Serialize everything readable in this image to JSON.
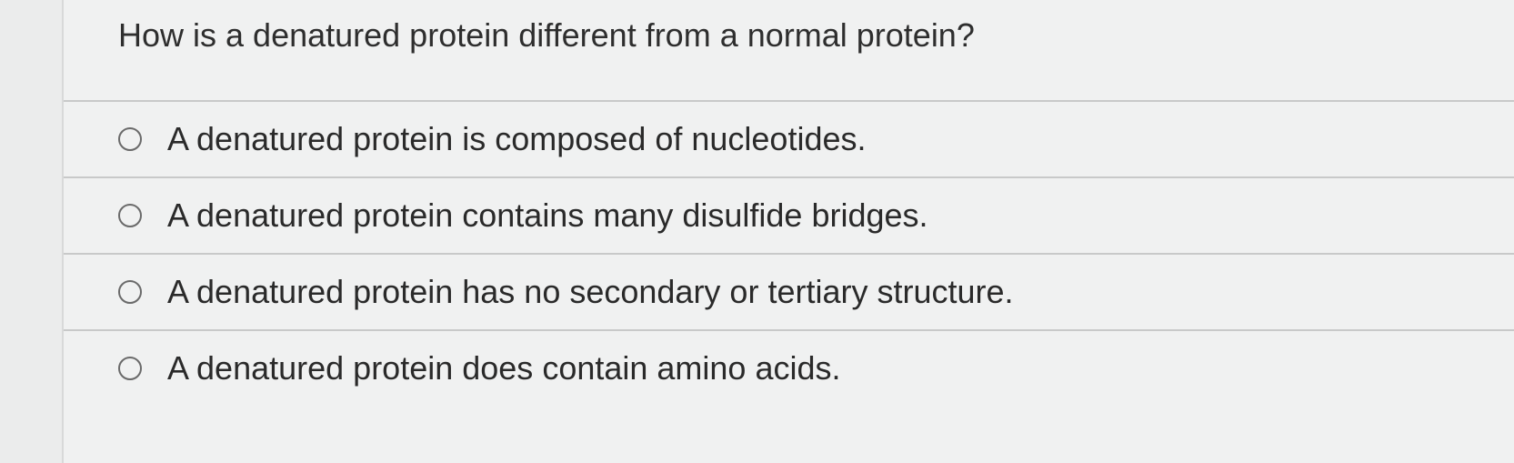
{
  "question": {
    "text": "How is a denatured protein different from a normal protein?",
    "options": [
      {
        "label": "A denatured protein is composed of nucleotides."
      },
      {
        "label": "A denatured protein contains many disulfide bridges."
      },
      {
        "label": "A denatured protein has no secondary or tertiary structure."
      },
      {
        "label": "A denatured protein does contain amino acids."
      }
    ]
  },
  "style": {
    "background_color": "#f0f1f1",
    "left_margin_color": "#ebecec",
    "divider_color": "#c8c9c9",
    "text_color": "#2a2a2a",
    "radio_border_color": "#6a6a6a",
    "font_size_question": 36,
    "font_size_option": 36
  }
}
